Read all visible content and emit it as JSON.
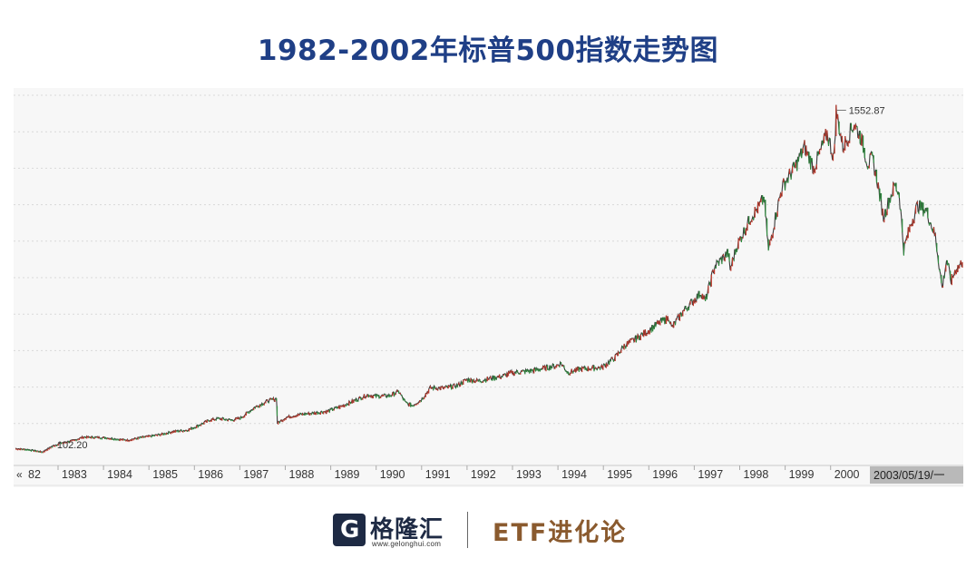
{
  "title": "1982-2002年标普500指数走势图",
  "chart_data": {
    "type": "line",
    "title": "1982-2002年标普500指数走势图",
    "xlabel": "",
    "ylabel": "",
    "x_tick_labels": [
      "82",
      "1983",
      "1984",
      "1985",
      "1986",
      "1987",
      "1988",
      "1989",
      "1990",
      "1991",
      "1992",
      "1993",
      "1994",
      "1995",
      "1996",
      "1997",
      "1998",
      "1999",
      "2000"
    ],
    "scroll_marker": "«",
    "current_date_label": "2003/05/19/一",
    "ylim": [
      60,
      1620
    ],
    "grid": true,
    "annotations": [
      {
        "label": "102.20",
        "x": 1982.6,
        "y": 102.2,
        "kind": "low"
      },
      {
        "label": "1552.87",
        "x": 2000.2,
        "y": 1552.87,
        "kind": "high"
      }
    ],
    "series": [
      {
        "values": [
          [
            1982.0,
            117
          ],
          [
            1982.3,
            112
          ],
          [
            1982.6,
            102.2
          ],
          [
            1982.8,
            125
          ],
          [
            1983.0,
            140
          ],
          [
            1983.3,
            152
          ],
          [
            1983.5,
            166
          ],
          [
            1983.8,
            165
          ],
          [
            1984.0,
            163
          ],
          [
            1984.3,
            156
          ],
          [
            1984.5,
            153
          ],
          [
            1984.8,
            165
          ],
          [
            1985.0,
            170
          ],
          [
            1985.3,
            180
          ],
          [
            1985.5,
            190
          ],
          [
            1985.8,
            195
          ],
          [
            1986.0,
            210
          ],
          [
            1986.3,
            238
          ],
          [
            1986.5,
            245
          ],
          [
            1986.8,
            238
          ],
          [
            1987.0,
            248
          ],
          [
            1987.3,
            292
          ],
          [
            1987.6,
            320
          ],
          [
            1987.79,
            330
          ],
          [
            1987.81,
            225
          ],
          [
            1988.0,
            250
          ],
          [
            1988.3,
            262
          ],
          [
            1988.6,
            268
          ],
          [
            1988.9,
            275
          ],
          [
            1989.2,
            295
          ],
          [
            1989.5,
            320
          ],
          [
            1989.8,
            345
          ],
          [
            1990.0,
            340
          ],
          [
            1990.3,
            342
          ],
          [
            1990.5,
            360
          ],
          [
            1990.65,
            312
          ],
          [
            1990.8,
            300
          ],
          [
            1991.0,
            325
          ],
          [
            1991.2,
            375
          ],
          [
            1991.5,
            375
          ],
          [
            1991.8,
            385
          ],
          [
            1992.0,
            410
          ],
          [
            1992.3,
            405
          ],
          [
            1992.5,
            415
          ],
          [
            1992.8,
            425
          ],
          [
            1993.0,
            440
          ],
          [
            1993.3,
            445
          ],
          [
            1993.5,
            450
          ],
          [
            1993.8,
            462
          ],
          [
            1994.0,
            470
          ],
          [
            1994.1,
            480
          ],
          [
            1994.25,
            440
          ],
          [
            1994.5,
            455
          ],
          [
            1994.8,
            460
          ],
          [
            1995.0,
            462
          ],
          [
            1995.3,
            505
          ],
          [
            1995.5,
            555
          ],
          [
            1995.8,
            590
          ],
          [
            1996.0,
            615
          ],
          [
            1996.3,
            655
          ],
          [
            1996.5,
            675
          ],
          [
            1996.55,
            630
          ],
          [
            1996.8,
            700
          ],
          [
            1997.0,
            740
          ],
          [
            1997.2,
            780
          ],
          [
            1997.3,
            745
          ],
          [
            1997.5,
            890
          ],
          [
            1997.8,
            950
          ],
          [
            1997.85,
            880
          ],
          [
            1998.0,
            980
          ],
          [
            1998.3,
            1100
          ],
          [
            1998.5,
            1150
          ],
          [
            1998.6,
            1185
          ],
          [
            1998.7,
            960
          ],
          [
            1998.85,
            1100
          ],
          [
            1999.0,
            1230
          ],
          [
            1999.3,
            1320
          ],
          [
            1999.5,
            1400
          ],
          [
            1999.7,
            1310
          ],
          [
            1999.85,
            1380
          ],
          [
            2000.0,
            1460
          ],
          [
            2000.15,
            1350
          ],
          [
            2000.2,
            1552.87
          ],
          [
            2000.35,
            1400
          ],
          [
            2000.6,
            1500
          ],
          [
            2000.75,
            1440
          ],
          [
            2000.9,
            1330
          ],
          [
            2001.0,
            1350
          ],
          [
            2001.1,
            1270
          ],
          [
            2001.25,
            1100
          ],
          [
            2001.35,
            1160
          ],
          [
            2001.5,
            1240
          ],
          [
            2001.6,
            1200
          ],
          [
            2001.7,
            965
          ],
          [
            2001.85,
            1070
          ],
          [
            2002.0,
            1150
          ],
          [
            2002.2,
            1130
          ],
          [
            2002.4,
            1020
          ],
          [
            2002.55,
            800
          ],
          [
            2002.65,
            920
          ],
          [
            2002.75,
            830
          ],
          [
            2002.85,
            880
          ],
          [
            2003.0,
            910
          ]
        ]
      }
    ]
  },
  "logo": {
    "glyph": "G",
    "name": "格隆汇",
    "url": "www.gelonghui.com"
  },
  "brand_right": "ETF进化论"
}
